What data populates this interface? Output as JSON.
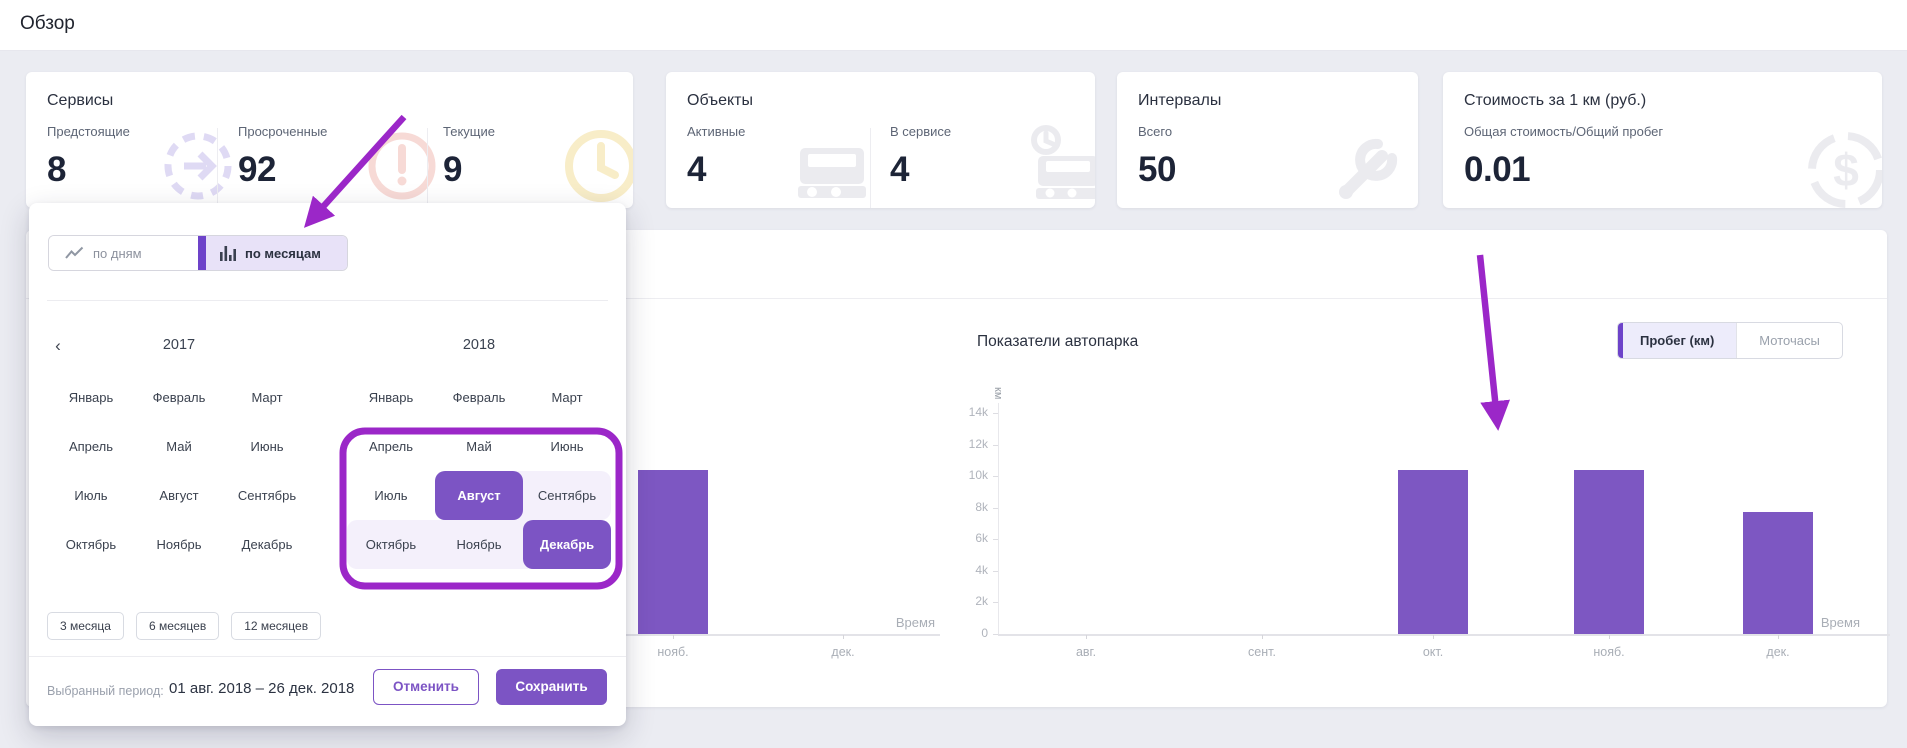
{
  "page": {
    "title": "Обзор",
    "background": "#ebecf2",
    "accent": "#7c54c4",
    "annotation_color": "#9b27c8",
    "bar_color": "#7d57c2"
  },
  "summary_cards": [
    {
      "title": "Сервисы",
      "stats": [
        {
          "label": "Предстоящие",
          "value": "8",
          "icon": "arrow-circle-icon"
        },
        {
          "label": "Просроченные",
          "value": "92",
          "icon": "alert-clock-icon"
        },
        {
          "label": "Текущие",
          "value": "9",
          "icon": "clock-icon"
        }
      ]
    },
    {
      "title": "Объекты",
      "stats": [
        {
          "label": "Активные",
          "value": "4",
          "icon": "vehicle-icon"
        },
        {
          "label": "В сервисе",
          "value": "4",
          "icon": "vehicle-service-icon"
        }
      ]
    },
    {
      "title": "Интервалы",
      "stats": [
        {
          "label": "Всего",
          "value": "50",
          "icon": "wrench-icon"
        }
      ]
    },
    {
      "title": "Стоимость за 1 км (руб.)",
      "stats": [
        {
          "label": "Общая стоимость/Общий пробег",
          "value": "0.01",
          "icon": "currency-icon"
        }
      ]
    }
  ],
  "date_picker": {
    "mode_toggle": {
      "by_days": {
        "label": "по дням",
        "icon": "line-chart-icon",
        "selected": false
      },
      "by_months": {
        "label": "по месяцам",
        "icon": "bar-chart-icon",
        "selected": true
      }
    },
    "nav_prev": "‹",
    "month_names": [
      "Январь",
      "Февраль",
      "Март",
      "Апрель",
      "Май",
      "Июнь",
      "Июль",
      "Август",
      "Сентябрь",
      "Октябрь",
      "Ноябрь",
      "Декабрь"
    ],
    "calendars": [
      {
        "year": "2017",
        "start": null,
        "end": null,
        "in_range": []
      },
      {
        "year": "2018",
        "start": "Август",
        "end": "Декабрь",
        "in_range": [
          "Сентябрь",
          "Октябрь",
          "Ноябрь"
        ]
      }
    ],
    "quick_ranges": [
      "3 месяца",
      "6 месяцев",
      "12 месяцев"
    ],
    "footer": {
      "period_label": "Выбранный период:",
      "period_value": "01 авг. 2018 – 26 дек. 2018",
      "cancel_label": "Отменить",
      "save_label": "Сохранить"
    }
  },
  "fleet_chart_section": {
    "title": "Показатели автопарка",
    "metric_toggle": {
      "mileage": {
        "label": "Пробег (км)",
        "selected": true
      },
      "hours": {
        "label": "Моточасы",
        "selected": false
      }
    }
  },
  "chart_data": [
    {
      "type": "bar",
      "title": "Показатели автопарка",
      "position": "left (mostly occluded by date-picker popup)",
      "categories": [
        "авг.",
        "сент.",
        "окт.",
        "нояб.",
        "дек."
      ],
      "values": [
        null,
        null,
        null,
        10400,
        null
      ],
      "ylabel": "км",
      "xlabel": "Время",
      "ylim": [
        0,
        14000
      ],
      "note": "only the нояб. bar (~10.4k) is visible; авг./сент./окт. are hidden behind the popup, дек. shows no bar"
    },
    {
      "type": "bar",
      "title": "Показатели автопарка",
      "position": "right",
      "categories": [
        "авг.",
        "сент.",
        "окт.",
        "нояб.",
        "дек."
      ],
      "values": [
        0,
        0,
        10400,
        10400,
        7700
      ],
      "ylabel": "км",
      "xlabel": "Время",
      "ylim": [
        0,
        14000
      ],
      "yticks": [
        "0",
        "2k",
        "4k",
        "6k",
        "8k",
        "10k",
        "12k",
        "14k"
      ],
      "grid": false,
      "legend": false,
      "bar_color": "#7d57c2"
    }
  ]
}
